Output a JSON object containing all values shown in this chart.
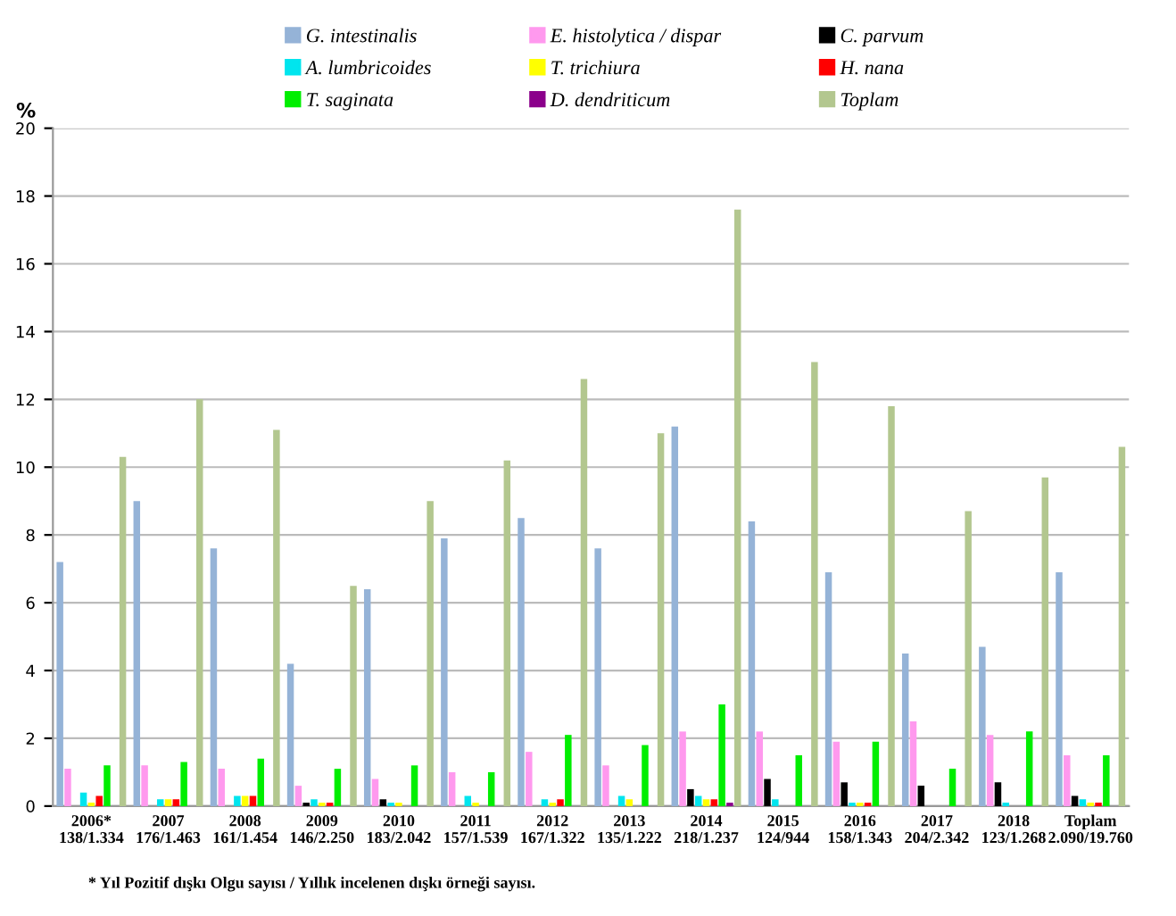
{
  "chart_data": {
    "type": "bar",
    "ylabel": "%",
    "categories": [
      "2006*\n138/1.334",
      "2007\n176/1.463",
      "2008\n161/1.454",
      "2009\n146/2.250",
      "2010\n183/2.042",
      "2011\n157/1.539",
      "2012\n167/1.322",
      "2013\n135/1.222",
      "2014\n218/1.237",
      "2015\n124/944",
      "2016\n158/1.343",
      "2017\n204/2.342",
      "2018\n123/1.268",
      "Toplam\n2.090/19.760"
    ],
    "series": [
      {
        "name": "G. intestinalis",
        "color": "#95b3d7",
        "values": [
          7.2,
          9.0,
          7.6,
          4.2,
          6.4,
          7.9,
          8.5,
          7.6,
          11.2,
          8.4,
          6.9,
          4.5,
          4.7,
          6.9
        ]
      },
      {
        "name": "E. histolytica / dispar",
        "color": "#ff99ee",
        "values": [
          1.1,
          1.2,
          1.1,
          0.6,
          0.8,
          1.0,
          1.6,
          1.2,
          2.2,
          2.2,
          1.9,
          2.5,
          2.1,
          1.5
        ]
      },
      {
        "name": "C. parvum",
        "color": "#000000",
        "values": [
          0,
          0,
          0,
          0.1,
          0.2,
          0,
          0,
          0,
          0.5,
          0.8,
          0.7,
          0.6,
          0.7,
          0.3
        ]
      },
      {
        "name": "A. lumbricoides",
        "color": "#00e5ee",
        "values": [
          0.4,
          0.2,
          0.3,
          0.2,
          0.1,
          0.3,
          0.2,
          0.3,
          0.3,
          0.2,
          0.1,
          0,
          0.1,
          0.2
        ]
      },
      {
        "name": "T. trichiura",
        "color": "#ffff00",
        "values": [
          0.1,
          0.2,
          0.3,
          0.1,
          0.1,
          0.1,
          0.1,
          0.2,
          0.2,
          0,
          0.1,
          0,
          0,
          0.1
        ]
      },
      {
        "name": "H. nana",
        "color": "#ff0000",
        "values": [
          0.3,
          0.2,
          0.3,
          0.1,
          0,
          0,
          0.2,
          0,
          0.2,
          0,
          0.1,
          0,
          0,
          0.1
        ]
      },
      {
        "name": "T. saginata",
        "color": "#00ee00",
        "values": [
          1.2,
          1.3,
          1.4,
          1.1,
          1.2,
          1.0,
          2.1,
          1.8,
          3.0,
          1.5,
          1.9,
          1.1,
          2.2,
          1.5
        ]
      },
      {
        "name": "D. dendriticum",
        "color": "#8b008b",
        "values": [
          0,
          0,
          0,
          0,
          0,
          0,
          0,
          0,
          0.1,
          0,
          0,
          0,
          0,
          0
        ]
      },
      {
        "name": "Toplam",
        "color": "#b3c78f",
        "values": [
          10.3,
          12.0,
          11.1,
          6.5,
          9.0,
          10.2,
          12.6,
          11.0,
          17.6,
          13.1,
          11.8,
          8.7,
          9.7,
          10.6
        ]
      }
    ],
    "ylim": [
      0,
      20
    ],
    "yticks": [
      0,
      2,
      4,
      6,
      8,
      10,
      12,
      14,
      16,
      18,
      20
    ],
    "grid": "y",
    "legend": "top",
    "annotations": [
      "* Yıl Pozitif dışkı Olgu sayısı / Yıllık incelenen dışkı örneği sayısı."
    ]
  }
}
